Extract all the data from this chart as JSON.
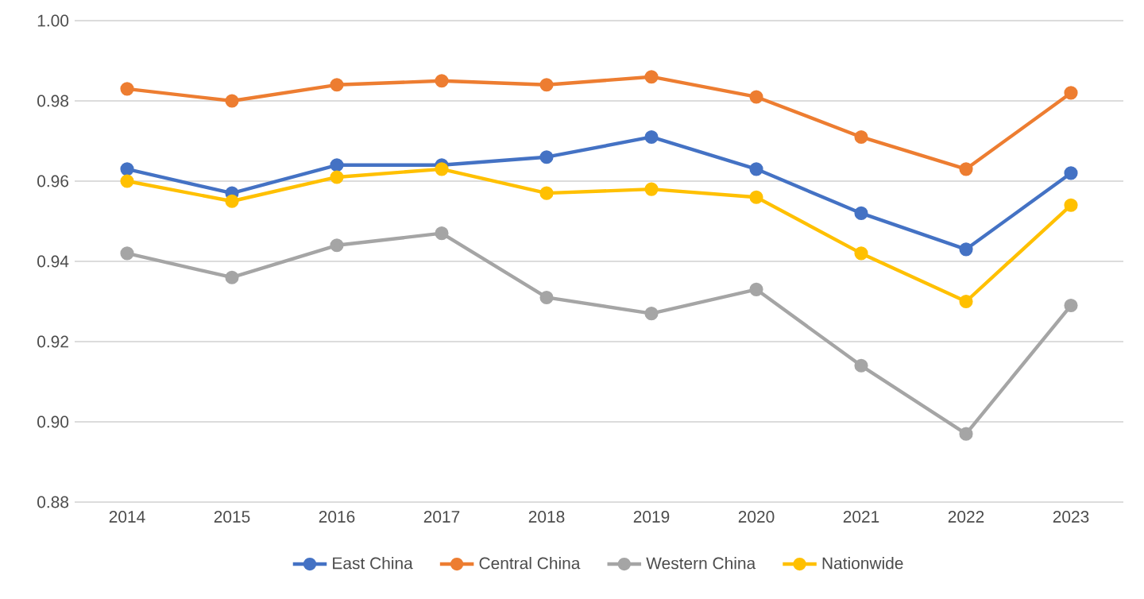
{
  "chart_data": {
    "type": "line",
    "categories": [
      "2014",
      "2015",
      "2016",
      "2017",
      "2018",
      "2019",
      "2020",
      "2021",
      "2022",
      "2023"
    ],
    "series": [
      {
        "name": "East China",
        "color": "#4472c4",
        "values": [
          0.963,
          0.957,
          0.964,
          0.964,
          0.966,
          0.971,
          0.963,
          0.952,
          0.943,
          0.962
        ]
      },
      {
        "name": "Central China",
        "color": "#ed7d31",
        "values": [
          0.983,
          0.98,
          0.984,
          0.985,
          0.984,
          0.986,
          0.981,
          0.971,
          0.963,
          0.982
        ]
      },
      {
        "name": "Western China",
        "color": "#a5a5a5",
        "values": [
          0.942,
          0.936,
          0.944,
          0.947,
          0.931,
          0.927,
          0.933,
          0.914,
          0.897,
          0.929
        ]
      },
      {
        "name": "Nationwide",
        "color": "#ffc000",
        "values": [
          0.96,
          0.955,
          0.961,
          0.963,
          0.957,
          0.958,
          0.956,
          0.942,
          0.93,
          0.954
        ]
      }
    ],
    "ylim": [
      0.88,
      1.0
    ],
    "yticks": [
      {
        "value": 0.88,
        "label": "0.88"
      },
      {
        "value": 0.9,
        "label": "0.90"
      },
      {
        "value": 0.92,
        "label": "0.92"
      },
      {
        "value": 0.94,
        "label": "0.94"
      },
      {
        "value": 0.96,
        "label": "0.96"
      },
      {
        "value": 0.98,
        "label": "0.98"
      },
      {
        "value": 1.0,
        "label": "1.00"
      }
    ],
    "grid": "y",
    "legend": "bottom",
    "marker": "circle",
    "line_style": "solid"
  }
}
